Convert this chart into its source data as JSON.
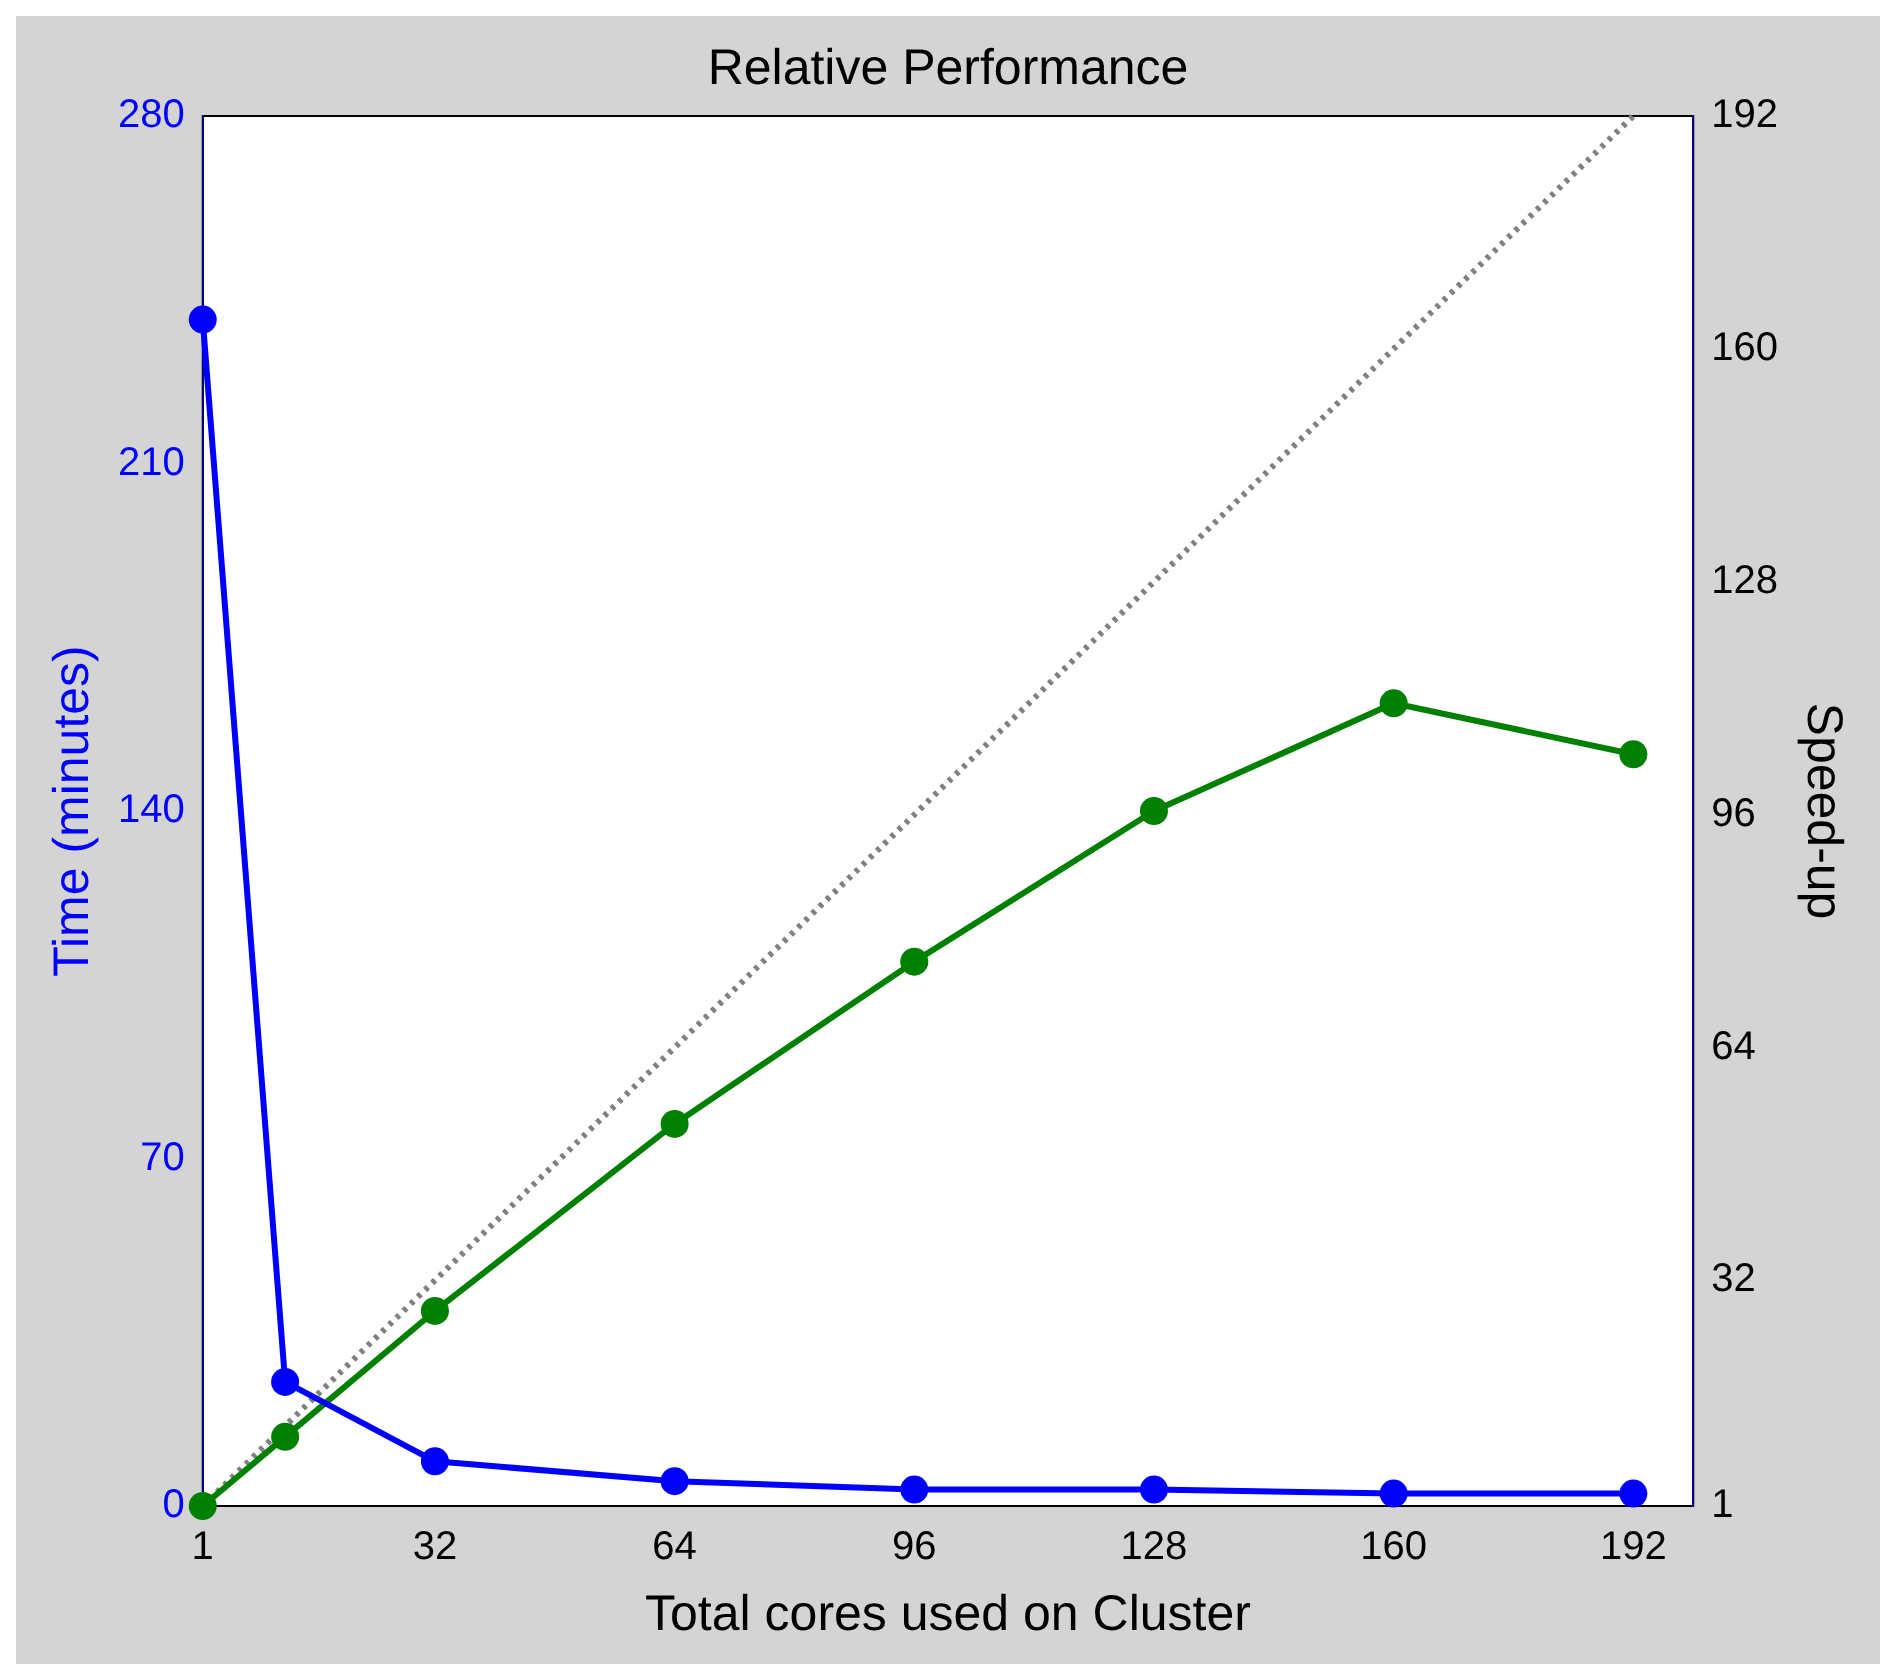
{
  "chart_data": {
    "type": "line",
    "title": "Relative Performance",
    "xlabel": "Total cores used on Cluster",
    "ylabel": "Time (minutes)",
    "y2label": "Speed-up",
    "xlim": [
      1,
      200
    ],
    "xticks": [
      1,
      32,
      64,
      96,
      128,
      160,
      192
    ],
    "ylim": [
      0,
      280
    ],
    "yticks": [
      0,
      70,
      140,
      210,
      280
    ],
    "y2lim": [
      1,
      192
    ],
    "y2ticks": [
      1,
      32,
      64,
      96,
      128,
      160,
      192
    ],
    "grid": false,
    "legend": false,
    "marker": "circle",
    "line_style": "solid",
    "series": [
      {
        "color": "#0000ff",
        "axis": "y",
        "x": [
          1,
          12,
          32,
          64,
          96,
          128,
          160,
          192
        ],
        "values": [
          239,
          25,
          9,
          5,
          3.3,
          3.3,
          2.5,
          2.5
        ]
      },
      {
        "color": "#008000",
        "axis": "y2",
        "x": [
          1,
          12,
          32,
          64,
          96,
          128,
          160,
          192
        ],
        "values": [
          1,
          10.5,
          27.8,
          53.5,
          75.8,
          96.5,
          111.3,
          104.3
        ]
      },
      {
        "color": "#808080",
        "axis": "y2",
        "x": [
          1,
          192
        ],
        "values": [
          1,
          192
        ],
        "marker": "none",
        "line_style": "dotted"
      }
    ]
  }
}
